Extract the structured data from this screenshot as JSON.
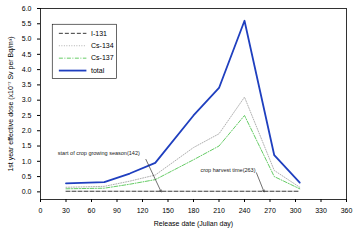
{
  "chart_data": {
    "type": "line",
    "x_label": "Release date (Julian day)",
    "y_label": "1st year effective dose (x10⁻⁷ Sv per Bq/m³)",
    "x": [
      30,
      75,
      105,
      135,
      180,
      210,
      240,
      275,
      305
    ],
    "series": [
      {
        "name": "I-131",
        "color": "#222222",
        "line_style": "dashed",
        "values": [
          0.02,
          0.02,
          0.02,
          0.02,
          0.02,
          0.02,
          0.02,
          0.02,
          0.02
        ]
      },
      {
        "name": "Cs-134",
        "color": "#b0b0b0",
        "line_style": "dotted",
        "values": [
          0.15,
          0.18,
          0.35,
          0.55,
          1.45,
          1.9,
          3.1,
          0.7,
          0.15
        ]
      },
      {
        "name": "Cs-137",
        "color": "#66cc66",
        "line_style": "dashdot",
        "values": [
          0.1,
          0.12,
          0.25,
          0.4,
          1.05,
          1.5,
          2.5,
          0.5,
          0.1
        ]
      },
      {
        "name": "total",
        "color": "#1f3fbf",
        "line_style": "solid",
        "values": [
          0.28,
          0.32,
          0.6,
          0.95,
          2.5,
          3.4,
          5.6,
          1.2,
          0.3
        ]
      }
    ],
    "xlim": [
      0,
      360
    ],
    "xticks": [
      0,
      30,
      60,
      90,
      120,
      150,
      180,
      210,
      240,
      270,
      300,
      330,
      360
    ],
    "ylim": [
      -0.25,
      6.0
    ],
    "yticks": [
      {
        "value": 0,
        "label": "0.0"
      },
      0.5,
      {
        "value": 1,
        "label": "1.0"
      },
      1.5,
      {
        "value": 2,
        "label": "2.0"
      },
      2.5,
      {
        "value": 3,
        "label": "3.0"
      },
      3.5,
      {
        "value": 4,
        "label": "4.0"
      },
      4.5,
      {
        "value": 5,
        "label": "5.0"
      },
      5.5,
      {
        "value": 6,
        "label": "6.0"
      }
    ],
    "grid": false,
    "legend": "upper left",
    "annotations": [
      {
        "text": "start of crop growing season(142)",
        "x": 142,
        "y": 0
      },
      {
        "text": "crop harvest time(263)",
        "x": 263,
        "y": 0
      }
    ]
  }
}
